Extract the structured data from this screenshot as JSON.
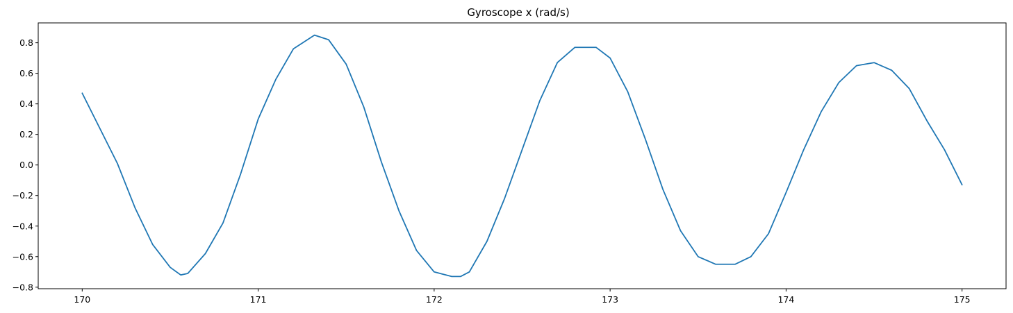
{
  "chart_data": {
    "type": "line",
    "title": "Gyroscope x (rad/s)",
    "xlabel": "",
    "ylabel": "",
    "xlim": [
      169.75,
      175.25
    ],
    "ylim": [
      -0.81,
      0.93
    ],
    "xticks": [
      170,
      171,
      172,
      173,
      174,
      175
    ],
    "xtick_labels": [
      "170",
      "171",
      "172",
      "173",
      "174",
      "175"
    ],
    "yticks": [
      -0.8,
      -0.6,
      -0.4,
      -0.2,
      0.0,
      0.2,
      0.4,
      0.6,
      0.8
    ],
    "ytick_labels": [
      "−0.8",
      "−0.6",
      "−0.4",
      "−0.2",
      "0.0",
      "0.2",
      "0.4",
      "0.6",
      "0.8"
    ],
    "grid": false,
    "series": [
      {
        "color": "#1f77b4",
        "x": [
          170.0,
          170.1,
          170.2,
          170.3,
          170.4,
          170.5,
          170.56,
          170.6,
          170.7,
          170.8,
          170.9,
          171.0,
          171.1,
          171.2,
          171.32,
          171.4,
          171.5,
          171.6,
          171.7,
          171.8,
          171.9,
          172.0,
          172.1,
          172.15,
          172.2,
          172.3,
          172.4,
          172.5,
          172.6,
          172.7,
          172.8,
          172.92,
          173.0,
          173.1,
          173.2,
          173.3,
          173.4,
          173.5,
          173.6,
          173.71,
          173.8,
          173.9,
          174.0,
          174.1,
          174.2,
          174.3,
          174.4,
          174.5,
          174.6,
          174.7,
          174.8,
          174.9,
          175.0
        ],
        "y": [
          0.47,
          0.24,
          0.01,
          -0.28,
          -0.52,
          -0.67,
          -0.72,
          -0.71,
          -0.58,
          -0.38,
          -0.06,
          0.3,
          0.56,
          0.76,
          0.85,
          0.82,
          0.66,
          0.38,
          0.02,
          -0.3,
          -0.56,
          -0.7,
          -0.73,
          -0.73,
          -0.7,
          -0.5,
          -0.22,
          0.1,
          0.42,
          0.67,
          0.77,
          0.77,
          0.7,
          0.48,
          0.17,
          -0.16,
          -0.43,
          -0.6,
          -0.65,
          -0.65,
          -0.6,
          -0.45,
          -0.18,
          0.1,
          0.35,
          0.54,
          0.65,
          0.67,
          0.62,
          0.5,
          0.29,
          0.1,
          -0.13
        ]
      }
    ]
  }
}
